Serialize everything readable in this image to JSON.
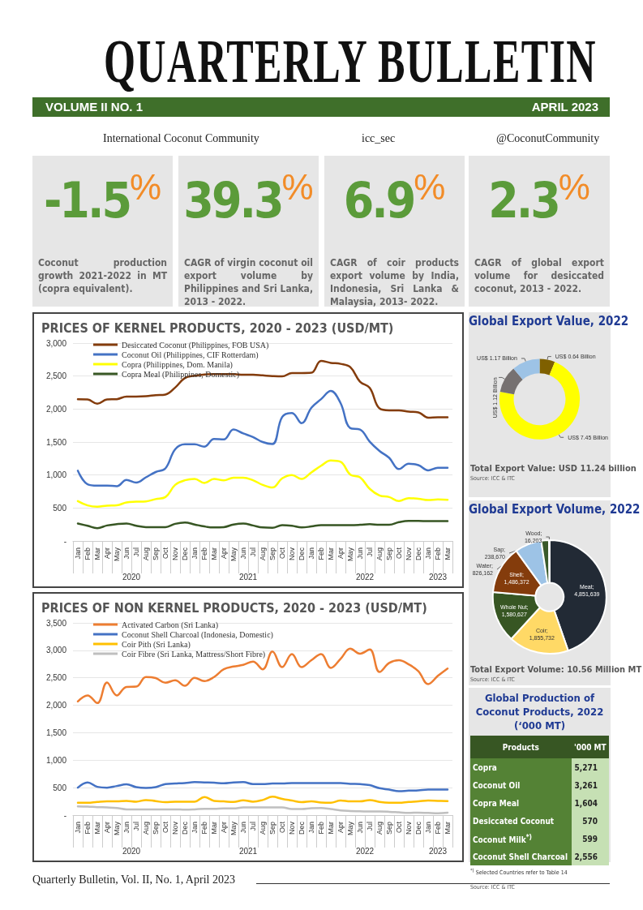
{
  "chart_data": [
    {
      "type": "other",
      "title": "QUARTERLY BULLETIN",
      "subtitle": "VOLUME II NO. 1",
      "annotations": [
        "APRIL 2023",
        "International Coconut Community",
        "icc_sec",
        "@CoconutCommunity",
        "Quarterly Bulletin, Vol. II, No. 1, April 2023"
      ],
      "categories": [
        "Coconut production growth 2021-2022 in MT (copra equivalent).",
        "CAGR of virgin coconut oil export volume by Philippines and Sri Lanka, 2013 - 2022.",
        "CAGR of coir products export volume by India, Indonesia, Sri Lanka & Malaysia, 2013- 2022.",
        "CAGR of global export volume for desiccated coconut, 2013 - 2022."
      ],
      "value_labels": [
        "-1.5$^{%}$",
        "39.3$^{%}$",
        "6.9$^{%}$",
        "2.3$^{%}$"
      ]
    },
    {
      "type": "line",
      "title": "PRICES OF KERNEL PRODUCTS, 2020 - 2023 (USD/MT)",
      "categories": [
        "Jan",
        "Feb",
        "Mar",
        "Apr",
        "May",
        "Jun",
        "Jul",
        "Aug",
        "Sep",
        "Oct",
        "Nov",
        "Dec",
        "Jan",
        "Feb",
        "Mar",
        "Apr",
        "May",
        "Jun",
        "Jul",
        "Aug",
        "Sep",
        "Oct",
        "Nov",
        "Dec",
        "Jan",
        "Feb",
        "Mar",
        "Apr",
        "May",
        "Jun",
        "Jul",
        "Aug",
        "Sep",
        "Oct",
        "Nov",
        "Dec",
        "Jan",
        "Feb",
        "Mar"
      ],
      "annotations": [
        "2020",
        "2021",
        "2022",
        "2023"
      ],
      "ylim": [
        0,
        3000
      ],
      "yticks": [
        {
          "value": 0,
          "label": "-"
        },
        500,
        {
          "value": 1000,
          "label": "1,000"
        },
        {
          "value": 1500,
          "label": "1,500"
        },
        {
          "value": 2000,
          "label": "2,000"
        },
        {
          "value": 2500,
          "label": "2,500"
        },
        {
          "value": 3000,
          "label": "3,000"
        }
      ],
      "grid": "y",
      "legend": "top left",
      "series": [
        {
          "name": "Desiccated Coconut (Philippines, FOB USA)",
          "color": "#843c0c",
          "values": [
            2150,
            2145,
            2080,
            2145,
            2150,
            2190,
            2190,
            2195,
            2210,
            2220,
            2325,
            2470,
            2505,
            2525,
            2530,
            2530,
            2530,
            2520,
            2520,
            2510,
            2500,
            2495,
            2545,
            2545,
            2550,
            2730,
            2700,
            2685,
            2635,
            2415,
            2320,
            2010,
            1980,
            1980,
            1960,
            1950,
            1870,
            1875,
            1875
          ]
        },
        {
          "name": "Coconut Oil (Philippines, CIF Rotterdam)",
          "color": "#4472c4",
          "values": [
            1065,
            860,
            840,
            840,
            830,
            925,
            885,
            965,
            1045,
            1100,
            1390,
            1465,
            1465,
            1430,
            1545,
            1540,
            1690,
            1630,
            1575,
            1500,
            1470,
            1880,
            1940,
            1785,
            2020,
            2150,
            2275,
            2090,
            1710,
            1690,
            1505,
            1365,
            1260,
            1090,
            1170,
            1150,
            1070,
            1110,
            1110
          ]
        },
        {
          "name": "Copra (Philippines, Dom. Manila)",
          "color": "#ffff00",
          "values": [
            605,
            540,
            520,
            535,
            540,
            585,
            595,
            600,
            635,
            665,
            850,
            920,
            940,
            880,
            940,
            920,
            960,
            960,
            920,
            850,
            810,
            950,
            1000,
            940,
            1040,
            1140,
            1220,
            1200,
            1005,
            965,
            790,
            690,
            665,
            605,
            650,
            640,
            620,
            630,
            625
          ]
        },
        {
          "name": "Copra Meal (Philippines, Domestic)",
          "color": "#375623",
          "values": [
            265,
            230,
            195,
            235,
            255,
            265,
            230,
            210,
            210,
            210,
            260,
            280,
            250,
            220,
            205,
            210,
            250,
            265,
            235,
            205,
            200,
            240,
            230,
            205,
            220,
            240,
            240,
            240,
            240,
            245,
            255,
            245,
            245,
            285,
            305,
            305,
            300,
            300,
            300
          ]
        }
      ]
    },
    {
      "type": "line",
      "title": "PRICES OF NON KERNEL PRODUCTS, 2020 - 2023 (USD/MT)",
      "categories": [
        "Jan",
        "Feb",
        "Mar",
        "Apr",
        "May",
        "Jun",
        "Jul",
        "Aug",
        "Sep",
        "Oct",
        "Nov",
        "Dec",
        "Jan",
        "Feb",
        "Mar",
        "Apr",
        "May",
        "Jun",
        "Jul",
        "Aug",
        "Sep",
        "Oct",
        "Nov",
        "Dec",
        "Jan",
        "Feb",
        "Mar",
        "Apr",
        "May",
        "Jun",
        "Jul",
        "Aug",
        "Sep",
        "Oct",
        "Nov",
        "Dec",
        "Jan",
        "Feb",
        "Mar"
      ],
      "annotations": [
        "2020",
        "2021",
        "2022",
        "2023"
      ],
      "ylim": [
        0,
        3500
      ],
      "yticks": [
        {
          "value": 0,
          "label": "-"
        },
        500,
        {
          "value": 1000,
          "label": "1,000"
        },
        {
          "value": 1500,
          "label": "1,500"
        },
        {
          "value": 2000,
          "label": "2,000"
        },
        {
          "value": 2500,
          "label": "2,500"
        },
        {
          "value": 3000,
          "label": "3,000"
        },
        {
          "value": 3500,
          "label": "3,500"
        }
      ],
      "grid": "y",
      "legend": "top left",
      "series": [
        {
          "name": "Activated Carbon (Sri Lanka)",
          "color": "#ed7d31",
          "values": [
            2070,
            2180,
            2040,
            2415,
            2180,
            2335,
            2340,
            2515,
            2495,
            2410,
            2455,
            2355,
            2500,
            2440,
            2515,
            2655,
            2705,
            2735,
            2795,
            2655,
            2980,
            2695,
            2930,
            2695,
            2820,
            2930,
            2680,
            2845,
            3030,
            2940,
            3015,
            2605,
            2770,
            2820,
            2745,
            2620,
            2385,
            2535,
            2670
          ]
        },
        {
          "name": "Coconut Shell Charcoal (Indonesia, Domestic)",
          "color": "#4472c4",
          "values": [
            500,
            595,
            515,
            500,
            530,
            560,
            510,
            495,
            510,
            565,
            575,
            585,
            600,
            595,
            590,
            580,
            595,
            600,
            565,
            565,
            575,
            575,
            585,
            585,
            585,
            585,
            585,
            585,
            570,
            565,
            545,
            490,
            465,
            435,
            445,
            450,
            465,
            465,
            465
          ]
        },
        {
          "name": "Coir Pith (Sri Lanka)",
          "color": "#ffc000",
          "values": [
            225,
            225,
            240,
            250,
            250,
            260,
            245,
            275,
            255,
            235,
            245,
            245,
            245,
            330,
            260,
            250,
            240,
            270,
            245,
            275,
            335,
            295,
            265,
            235,
            250,
            230,
            225,
            265,
            250,
            250,
            275,
            240,
            225,
            225,
            240,
            250,
            265,
            260,
            255
          ]
        },
        {
          "name": "Coir Fibre (Sri Lanka, Mattress/Short Fibre)",
          "color": "#bfbfbf",
          "values": [
            160,
            155,
            145,
            140,
            130,
            105,
            105,
            105,
            105,
            105,
            105,
            100,
            105,
            115,
            115,
            120,
            120,
            140,
            140,
            140,
            140,
            140,
            110,
            110,
            125,
            130,
            110,
            85,
            75,
            70,
            65,
            65,
            60,
            50,
            40,
            45,
            40,
            35,
            45
          ]
        }
      ]
    },
    {
      "type": "donut",
      "title": "Global Export Value, 2022",
      "categories": [
        null,
        null,
        null,
        null
      ],
      "values": [
        0.64,
        7.45,
        1.12,
        1.17
      ],
      "colors": [
        "#7f6000",
        "#ffff00",
        "#767171",
        "#9dc3e6"
      ],
      "value_labels": [
        "US$ 0.64 Billion",
        "US$ 7.45 Billion",
        "US$ 1.12 Billion",
        "US$ 1.17 Billion"
      ],
      "annotations": [
        "Total Export Value: USD 11.24 billion",
        "Source: ICC & ITC"
      ]
    },
    {
      "type": "donut",
      "title": "Global Export Volume, 2022",
      "categories": [
        null,
        null,
        null,
        null,
        null,
        null,
        null
      ],
      "values": [
        4851639,
        1855732,
        1580627,
        1486372,
        826162,
        238670,
        16203
      ],
      "colors": [
        "#222a35",
        "#ffd966",
        "#375623",
        "#843c0c",
        "#9dc3e6",
        "#3a5a2a",
        "#d9d9d9"
      ],
      "value_labels": [
        "Meat; 4,851,639",
        "Coir; 1,855,732",
        "Whole Nut; 1,580,627",
        "Shell; 1,486,372",
        "Water; 826,162",
        "Sap; 238,670",
        "Wood; 16,203"
      ],
      "annotations": [
        "Total Export Volume: 10.56 Million MT",
        "Source: ICC & ITC"
      ]
    },
    {
      "type": "other",
      "title": "Global Production of Coconut Products, 2022 (‘000 MT)",
      "xlabel": "Products",
      "ylabel": "'000 MT",
      "categories": [
        "Copra",
        "Coconut Oil",
        "Copra Meal",
        "Desiccated Coconut",
        "Coconut Milk$^{*)}$",
        "Coconut Shell Charcoal"
      ],
      "value_labels": [
        "5,271",
        "3,261",
        "1,604",
        "570",
        "599",
        "2,556"
      ],
      "annotations": [
        "$^{*)}$ Selected Countries refer to Table 14",
        "Source: ICC & ITC"
      ]
    }
  ]
}
